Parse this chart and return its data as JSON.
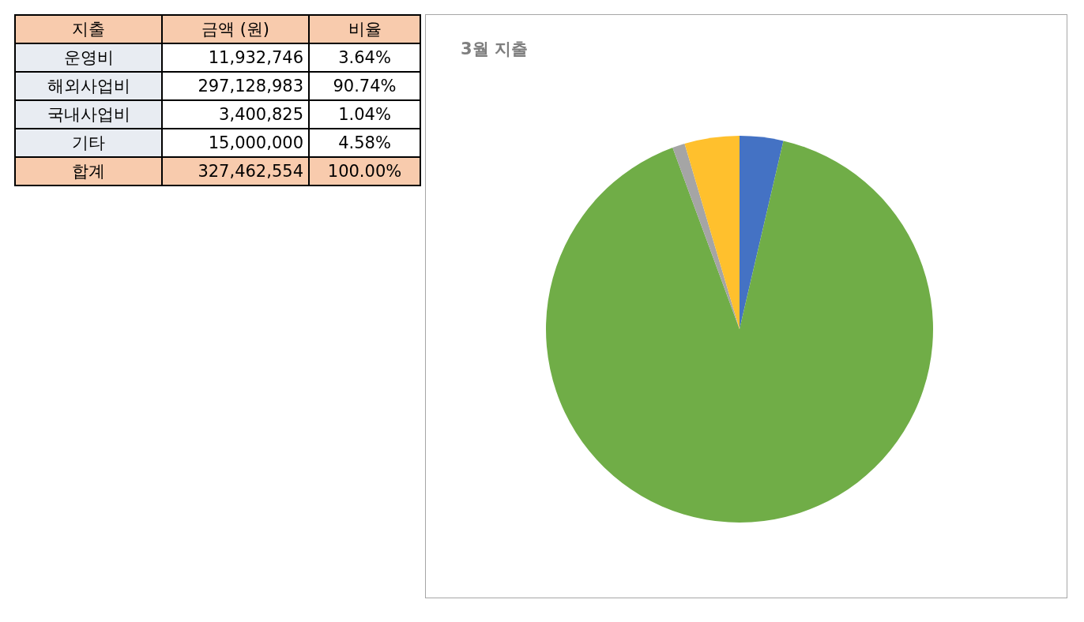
{
  "chart_data": [
    {
      "type": "other",
      "annotations": [
        "지출",
        "금액 (원)",
        "비율",
        "운영비",
        "11,932,746",
        "3.64%",
        "해외사업비",
        "297,128,983",
        "90.74%",
        "국내사업비",
        "3,400,825",
        "1.04%",
        "기타",
        "15,000,000",
        "4.58%",
        "합계",
        "327,462,554",
        "100.00%"
      ]
    },
    {
      "type": "pie",
      "title": "3월 지출",
      "categories": [
        null,
        null,
        null,
        null
      ],
      "values": [
        3.64,
        90.74,
        1.04,
        4.58
      ],
      "colors": [
        "#4472c4",
        "#70ad47",
        "#a5a5a5",
        "#ffc02d"
      ]
    }
  ]
}
